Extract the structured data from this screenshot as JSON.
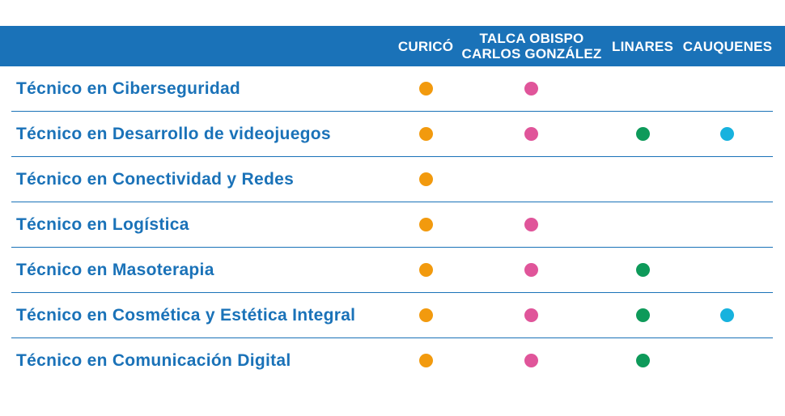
{
  "header": {
    "columns": [
      {
        "id": "curico",
        "lines": [
          "CURICÓ"
        ],
        "color": "#f29a0e"
      },
      {
        "id": "talca",
        "lines": [
          "TALCA OBISPO",
          "CARLOS GONZÁLEZ"
        ],
        "color": "#e0559a"
      },
      {
        "id": "linares",
        "lines": [
          "LINARES"
        ],
        "color": "#0e9a5a"
      },
      {
        "id": "cauquenes",
        "lines": [
          "CAUQUENES"
        ],
        "color": "#17b2de"
      }
    ]
  },
  "rows": [
    {
      "label": "Técnico en Ciberseguridad",
      "campuses": [
        true,
        true,
        false,
        false
      ]
    },
    {
      "label": "Técnico en Desarrollo de videojuegos",
      "campuses": [
        true,
        true,
        true,
        true
      ]
    },
    {
      "label": "Técnico en Conectividad y Redes",
      "campuses": [
        true,
        false,
        false,
        false
      ]
    },
    {
      "label": "Técnico en Logística",
      "campuses": [
        true,
        true,
        false,
        false
      ]
    },
    {
      "label": "Técnico en Masoterapia",
      "campuses": [
        true,
        true,
        true,
        false
      ]
    },
    {
      "label": "Técnico en Cosmética y Estética Integral",
      "campuses": [
        true,
        true,
        true,
        true
      ]
    },
    {
      "label": "Técnico en Comunicación Digital",
      "campuses": [
        true,
        true,
        true,
        false
      ]
    }
  ],
  "colors": {
    "header_bg": "#1a72b8",
    "label_text": "#1a72b8"
  }
}
